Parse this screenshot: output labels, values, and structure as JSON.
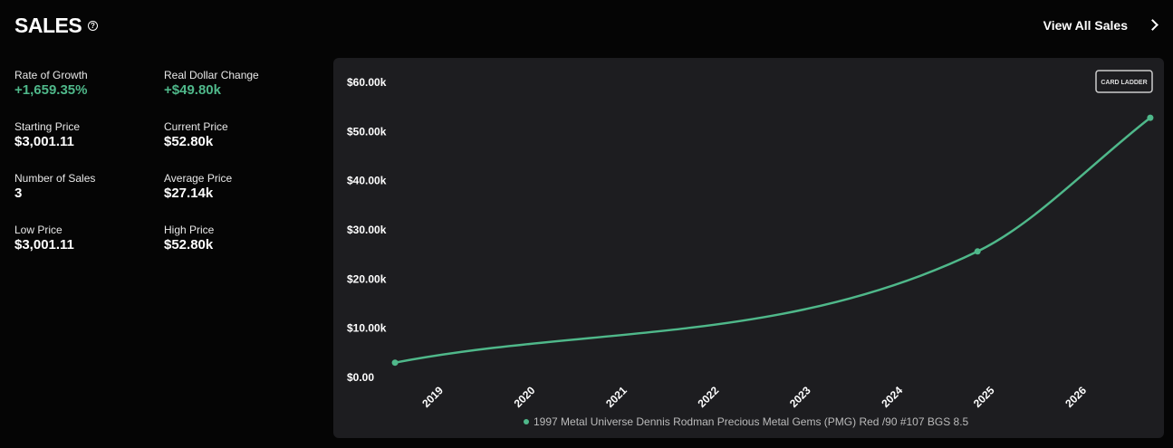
{
  "header": {
    "title": "SALES",
    "help_icon": "?",
    "link": "View All Sales"
  },
  "stats": [
    {
      "label": "Rate of Growth",
      "value": "+1,659.35%"
    },
    {
      "label": "Real Dollar Change",
      "value": "+$49.80k"
    },
    {
      "label": "Starting Price",
      "value": "$3,001.11"
    },
    {
      "label": "Current Price",
      "value": "$52.80k"
    },
    {
      "label": "Number of Sales",
      "value": "3"
    },
    {
      "label": "Average Price",
      "value": "$27.14k"
    },
    {
      "label": "Low Price",
      "value": "$3,001.11"
    },
    {
      "label": "High Price",
      "value": "$52.80k"
    }
  ],
  "brand": "CARD LADDER",
  "chart_data": {
    "type": "line",
    "x": [
      2018.47,
      2024.81,
      2026.69
    ],
    "series": [
      {
        "name": "1997 Metal Universe Dennis Rodman Precious Metal Gems (PMG) Red /90 #107 BGS 8.5",
        "color": "#4fb88a",
        "values": [
          3001.11,
          25620,
          52800
        ]
      }
    ],
    "xlim": [
      2018.4,
      2026.75
    ],
    "xticks": [
      2019,
      2020,
      2021,
      2022,
      2023,
      2024,
      2025,
      2026
    ],
    "ylim": [
      0,
      60000
    ],
    "yticks": [
      {
        "value": 0,
        "label": "$0.00"
      },
      {
        "value": 10000,
        "label": "$10.00k"
      },
      {
        "value": 20000,
        "label": "$20.00k"
      },
      {
        "value": 30000,
        "label": "$30.00k"
      },
      {
        "value": 40000,
        "label": "$40.00k"
      },
      {
        "value": 50000,
        "label": "$50.00k"
      },
      {
        "value": 60000,
        "label": "$60.00k"
      }
    ],
    "grid": false
  }
}
